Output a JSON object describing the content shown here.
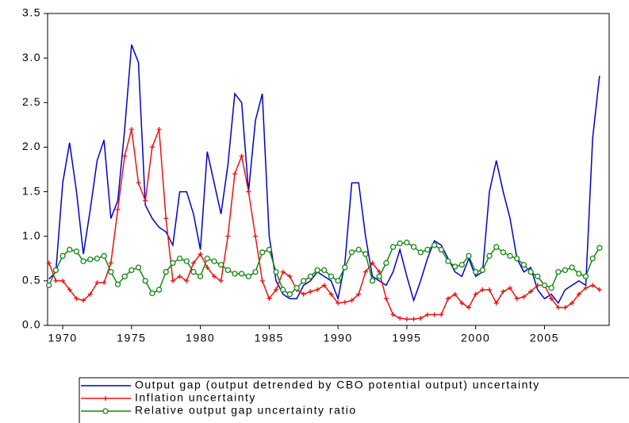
{
  "chart_data": {
    "type": "line",
    "x": [
      1969.0,
      1969.5,
      1970.0,
      1970.5,
      1971.0,
      1971.5,
      1972.0,
      1972.5,
      1973.0,
      1973.5,
      1974.0,
      1974.5,
      1975.0,
      1975.5,
      1976.0,
      1976.5,
      1977.0,
      1977.5,
      1978.0,
      1978.5,
      1979.0,
      1979.5,
      1980.0,
      1980.5,
      1981.0,
      1981.5,
      1982.0,
      1982.5,
      1983.0,
      1983.5,
      1984.0,
      1984.5,
      1985.0,
      1985.5,
      1986.0,
      1986.5,
      1987.0,
      1987.5,
      1988.0,
      1988.5,
      1989.0,
      1989.5,
      1990.0,
      1990.5,
      1991.0,
      1991.5,
      1992.0,
      1992.5,
      1993.0,
      1993.5,
      1994.0,
      1994.5,
      1995.0,
      1995.5,
      1996.0,
      1996.5,
      1997.0,
      1997.5,
      1998.0,
      1998.5,
      1999.0,
      1999.5,
      2000.0,
      2000.5,
      2001.0,
      2001.5,
      2002.0,
      2002.5,
      2003.0,
      2003.5,
      2004.0,
      2004.5,
      2005.0,
      2005.5,
      2006.0,
      2006.5,
      2007.0,
      2007.5,
      2008.0,
      2008.5,
      2009.0
    ],
    "series": [
      {
        "name": "Output gap (output detrended by CBO potential output) uncertainty",
        "color": "#0000cc",
        "marker": "none",
        "values": [
          0.52,
          0.6,
          1.6,
          2.05,
          1.5,
          0.8,
          1.3,
          1.85,
          2.08,
          1.2,
          1.4,
          2.2,
          3.15,
          2.95,
          1.35,
          1.2,
          1.1,
          1.05,
          0.9,
          1.5,
          1.5,
          1.25,
          0.85,
          1.95,
          1.6,
          1.25,
          1.8,
          2.6,
          2.5,
          1.5,
          2.3,
          2.6,
          1.0,
          0.5,
          0.35,
          0.3,
          0.3,
          0.45,
          0.5,
          0.6,
          0.55,
          0.5,
          0.3,
          0.7,
          1.6,
          1.6,
          1.0,
          0.55,
          0.5,
          0.45,
          0.6,
          0.85,
          0.55,
          0.28,
          0.5,
          0.75,
          0.95,
          0.9,
          0.75,
          0.6,
          0.55,
          0.75,
          0.55,
          0.6,
          1.5,
          1.85,
          1.5,
          1.2,
          0.75,
          0.6,
          0.65,
          0.4,
          0.3,
          0.35,
          0.25,
          0.4,
          0.45,
          0.5,
          0.45,
          2.1,
          2.8
        ]
      },
      {
        "name": "Inflation uncertainty",
        "color": "#ee1111",
        "marker": "plus",
        "values": [
          0.7,
          0.5,
          0.5,
          0.4,
          0.3,
          0.28,
          0.35,
          0.48,
          0.48,
          0.7,
          1.3,
          1.9,
          2.2,
          1.6,
          1.4,
          2.0,
          2.2,
          1.2,
          0.5,
          0.55,
          0.5,
          0.7,
          0.8,
          0.65,
          0.55,
          0.5,
          1.0,
          1.7,
          1.9,
          1.5,
          1.0,
          0.5,
          0.3,
          0.4,
          0.6,
          0.55,
          0.4,
          0.35,
          0.38,
          0.4,
          0.45,
          0.35,
          0.25,
          0.26,
          0.28,
          0.35,
          0.6,
          0.7,
          0.6,
          0.3,
          0.12,
          0.08,
          0.07,
          0.07,
          0.08,
          0.12,
          0.12,
          0.12,
          0.3,
          0.35,
          0.25,
          0.2,
          0.35,
          0.4,
          0.4,
          0.25,
          0.38,
          0.42,
          0.3,
          0.32,
          0.38,
          0.45,
          0.45,
          0.3,
          0.2,
          0.2,
          0.25,
          0.35,
          0.42,
          0.45,
          0.4
        ]
      },
      {
        "name": "Relative output gap uncertainty ratio",
        "color": "#118811",
        "marker": "circle",
        "values": [
          0.45,
          0.62,
          0.78,
          0.85,
          0.83,
          0.72,
          0.74,
          0.75,
          0.78,
          0.6,
          0.46,
          0.55,
          0.62,
          0.65,
          0.5,
          0.36,
          0.4,
          0.6,
          0.7,
          0.75,
          0.72,
          0.6,
          0.55,
          0.75,
          0.72,
          0.68,
          0.62,
          0.58,
          0.58,
          0.55,
          0.6,
          0.82,
          0.85,
          0.6,
          0.4,
          0.35,
          0.42,
          0.5,
          0.55,
          0.62,
          0.62,
          0.55,
          0.5,
          0.65,
          0.82,
          0.85,
          0.8,
          0.5,
          0.55,
          0.7,
          0.88,
          0.92,
          0.93,
          0.88,
          0.82,
          0.85,
          0.9,
          0.85,
          0.72,
          0.66,
          0.68,
          0.78,
          0.6,
          0.62,
          0.78,
          0.88,
          0.82,
          0.78,
          0.75,
          0.68,
          0.6,
          0.55,
          0.45,
          0.42,
          0.6,
          0.62,
          0.65,
          0.58,
          0.55,
          0.75,
          0.87
        ]
      }
    ],
    "xlim": [
      1968.9,
      2009.7
    ],
    "xticks": [
      1970,
      1975,
      1980,
      1985,
      1990,
      1995,
      2000,
      2005
    ],
    "ylim": [
      0,
      3.5
    ],
    "yticks": [
      {
        "value": 0,
        "label": "0.0"
      },
      0.5,
      {
        "value": 1,
        "label": "1.0"
      },
      1.5,
      {
        "value": 2,
        "label": "2.0"
      },
      2.5,
      {
        "value": 3,
        "label": "3.0"
      },
      3.5
    ],
    "legend": "bottom-left"
  }
}
